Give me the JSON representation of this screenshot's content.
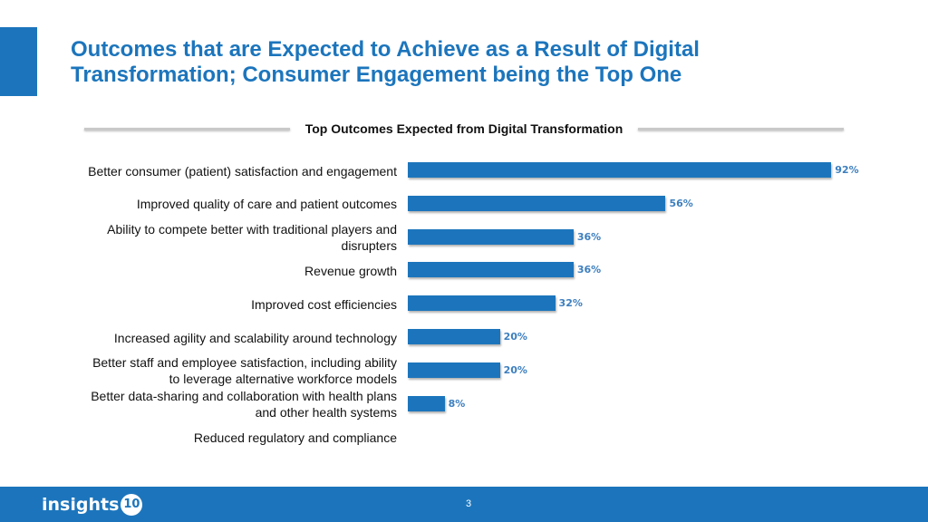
{
  "slide": {
    "title_line1": "Outcomes that are Expected to Achieve as a Result of Digital",
    "title_line2": "Transformation; Consumer Engagement being the Top One",
    "page_number": "3",
    "accent_color": "#1c75bc"
  },
  "logo": {
    "text": "insights",
    "number": "10"
  },
  "chart_data": {
    "type": "bar",
    "orientation": "horizontal",
    "title": "Top Outcomes Expected from Digital Transformation",
    "categories": [
      "Better consumer (patient) satisfaction and engagement",
      "Improved quality of care and patient outcomes",
      "Ability to compete better with traditional players and disrupters",
      "Revenue growth",
      "Improved cost efficiencies",
      "Increased agility and scalability around technology",
      "Better staff and employee satisfaction, including ability to leverage alternative workforce models",
      "Better data-sharing and collaboration with health plans and other health systems",
      "Reduced regulatory and compliance"
    ],
    "category_lines": [
      [
        "Better consumer (patient) satisfaction and engagement"
      ],
      [
        "Improved quality of care and patient outcomes"
      ],
      [
        "Ability to compete better with traditional players and",
        "disrupters"
      ],
      [
        "Revenue growth"
      ],
      [
        "Improved cost efficiencies"
      ],
      [
        "Increased agility and scalability around technology"
      ],
      [
        "Better staff and employee satisfaction, including ability",
        "to leverage alternative workforce models"
      ],
      [
        "Better data-sharing and collaboration with health plans",
        "and other health systems"
      ],
      [
        "Reduced regulatory and compliance"
      ]
    ],
    "values": [
      92,
      56,
      36,
      36,
      32,
      20,
      20,
      8,
      null
    ],
    "value_labels": [
      "92%",
      "56%",
      "36%",
      "36%",
      "32%",
      "20%",
      "20%",
      "8%",
      ""
    ],
    "unit": "%",
    "xlim": [
      0,
      100
    ],
    "bar_color": "#1c75bc",
    "label_color": "#3d7fbf",
    "grid": false,
    "legend": "none"
  }
}
